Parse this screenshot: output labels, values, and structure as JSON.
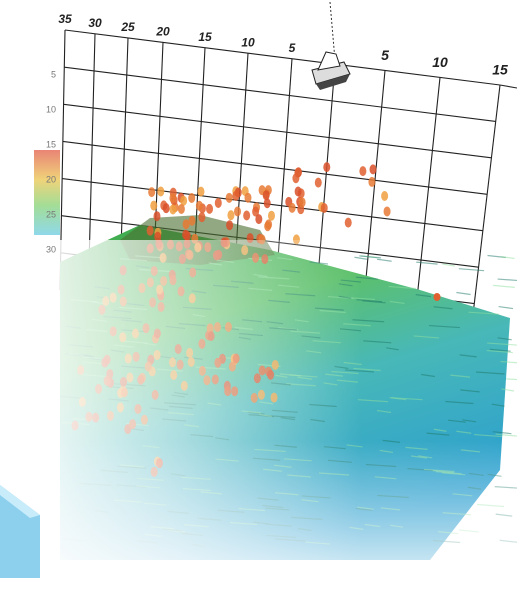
{
  "port_scale": {
    "labels": [
      "35",
      "30",
      "25",
      "20",
      "15",
      "10",
      "5"
    ]
  },
  "starboard_scale": {
    "labels": [
      "5",
      "10",
      "15"
    ]
  },
  "depth_scale": {
    "labels": [
      "5",
      "10",
      "15",
      "20",
      "25",
      "30"
    ]
  }
}
